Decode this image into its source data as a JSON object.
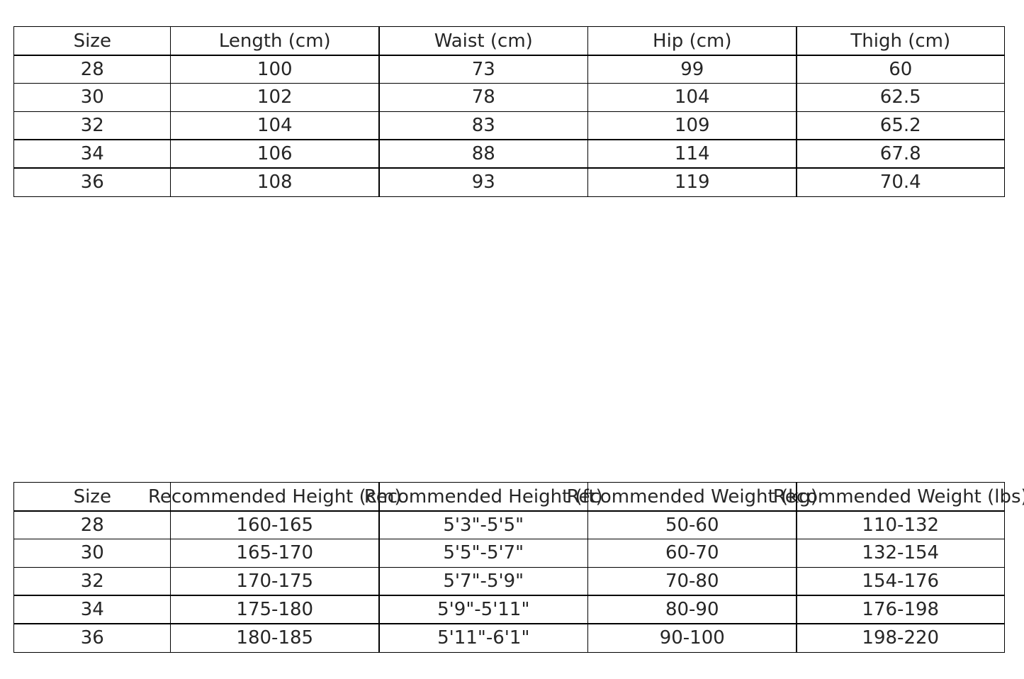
{
  "measurements": {
    "headers": [
      "Size",
      "Length (cm)",
      "Waist (cm)",
      "Hip (cm)",
      "Thigh (cm)"
    ],
    "rows": [
      [
        "28",
        "100",
        "73",
        "99",
        "60"
      ],
      [
        "30",
        "102",
        "78",
        "104",
        "62.5"
      ],
      [
        "32",
        "104",
        "83",
        "109",
        "65.2"
      ],
      [
        "34",
        "106",
        "88",
        "114",
        "67.8"
      ],
      [
        "36",
        "108",
        "93",
        "119",
        "70.4"
      ]
    ]
  },
  "recommendations": {
    "headers": [
      "Size",
      "Recommended Height (cm)",
      "Recommended Height (ft)",
      "Recommended Weight (kg)",
      "Recommended Weight (lbs)"
    ],
    "rows": [
      [
        "28",
        "160-165",
        "5'3\"-5'5\"",
        "50-60",
        "110-132"
      ],
      [
        "30",
        "165-170",
        "5'5\"-5'7\"",
        "60-70",
        "132-154"
      ],
      [
        "32",
        "170-175",
        "5'7\"-5'9\"",
        "70-80",
        "154-176"
      ],
      [
        "34",
        "175-180",
        "5'9\"-5'11\"",
        "80-90",
        "176-198"
      ],
      [
        "36",
        "180-185",
        "5'11\"-6'1\"",
        "90-100",
        "198-220"
      ]
    ]
  }
}
